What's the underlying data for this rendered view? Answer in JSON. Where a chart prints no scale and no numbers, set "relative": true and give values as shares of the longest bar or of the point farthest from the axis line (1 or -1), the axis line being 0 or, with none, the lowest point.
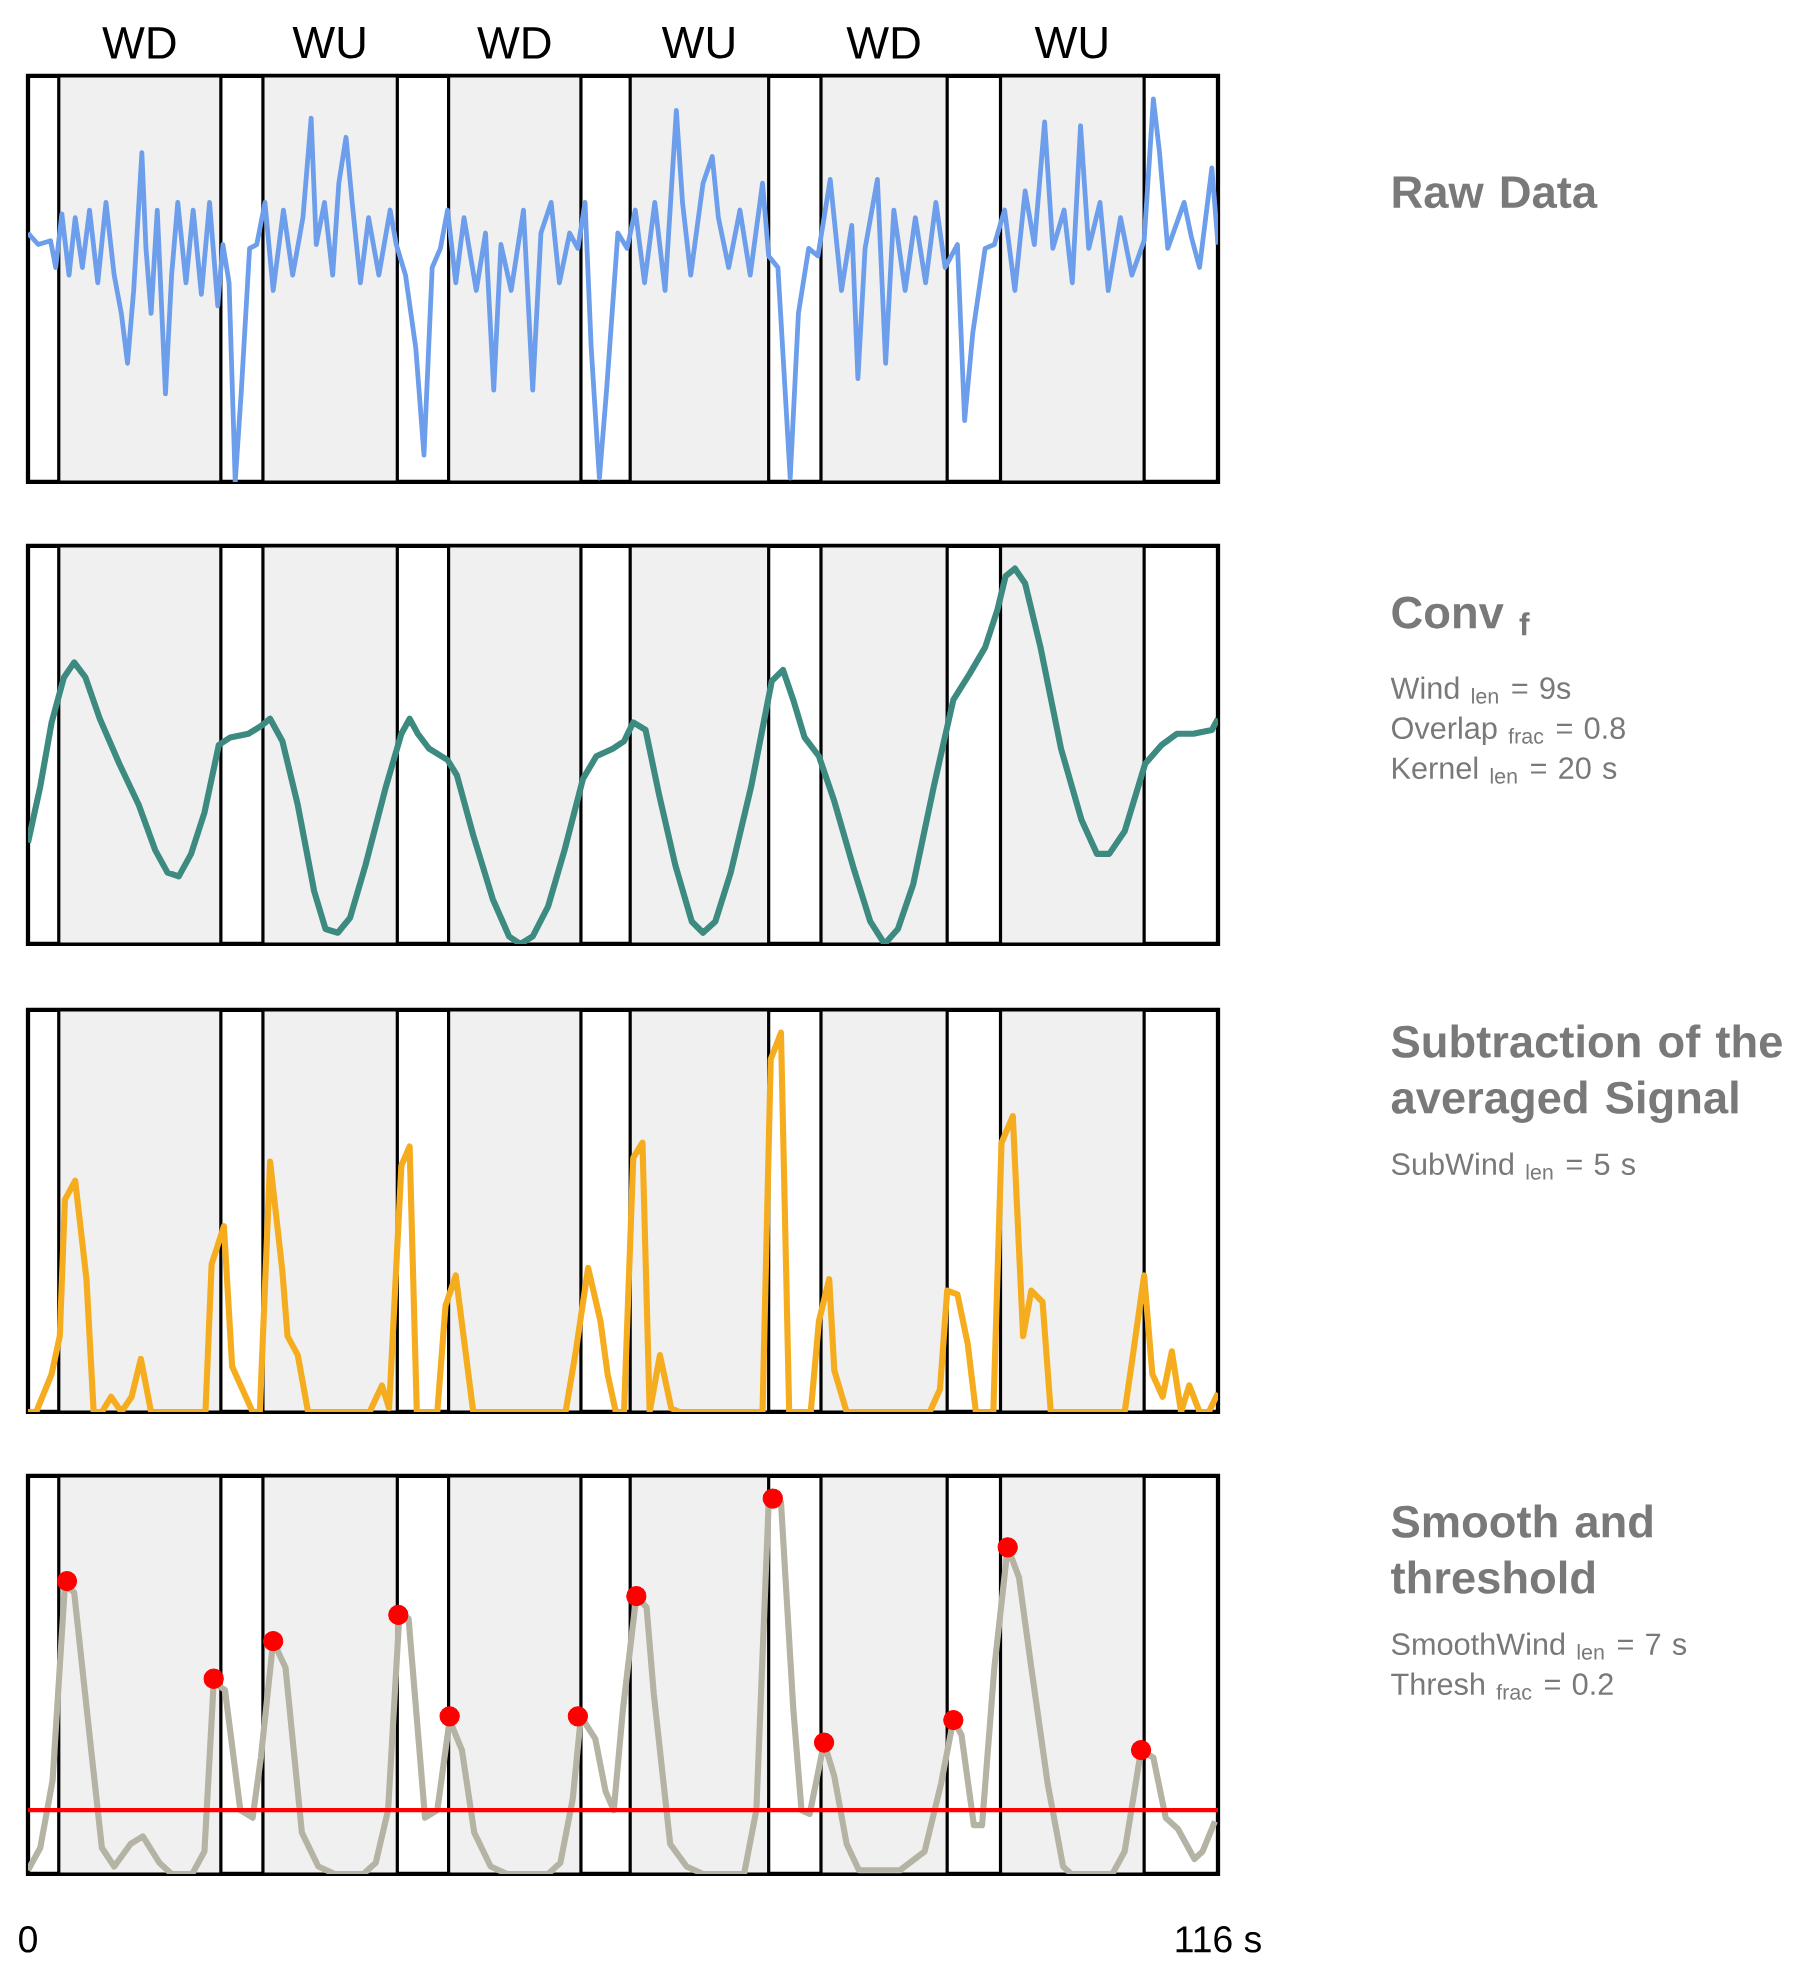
{
  "chart_data": [
    {
      "type": "line",
      "relative": true,
      "annotations": [
        "Raw Data"
      ],
      "xlim": [
        0,
        116
      ],
      "tick_labels": false,
      "bands": [
        {
          "axis": "x",
          "from": 3.0,
          "to": 18.8,
          "label": "WD",
          "color": "#f0f0f0"
        },
        {
          "axis": "x",
          "from": 22.9,
          "to": 36.0,
          "label": "WU",
          "color": "#f0f0f0"
        },
        {
          "axis": "x",
          "from": 41.0,
          "to": 53.9,
          "label": "WD",
          "color": "#f0f0f0"
        },
        {
          "axis": "x",
          "from": 58.7,
          "to": 72.2,
          "label": "WU",
          "color": "#f0f0f0"
        },
        {
          "axis": "x",
          "from": 77.3,
          "to": 89.6,
          "label": "WD",
          "color": "#f0f0f0"
        },
        {
          "axis": "x",
          "from": 94.8,
          "to": 108.8,
          "label": "WU",
          "color": "#f0f0f0"
        }
      ],
      "series": [
        {
          "color": "#6d9eeb",
          "x": [
            0,
            1.0,
            2.2,
            2.7,
            3.3,
            4.0,
            4.6,
            5.3,
            6.0,
            6.8,
            7.6,
            8.4,
            9.1,
            9.7,
            10.3,
            11.1,
            11.5,
            12.0,
            12.6,
            13.4,
            14.0,
            14.6,
            15.4,
            16.1,
            16.9,
            17.7,
            18.5,
            19.0,
            19.6,
            20.2,
            20.8,
            21.6,
            22.3,
            23.1,
            23.9,
            24.9,
            25.8,
            26.8,
            27.6,
            28.1,
            28.9,
            29.7,
            30.3,
            31.0,
            31.6,
            32.4,
            33.2,
            34.2,
            35.3,
            35.9,
            36.8,
            37.8,
            38.6,
            39.4,
            40.2,
            40.9,
            41.7,
            42.5,
            43.7,
            44.6,
            45.4,
            46.1,
            47.1,
            48.3,
            49.2,
            50.0,
            51.0,
            51.8,
            52.8,
            53.6,
            54.3,
            54.9,
            55.7,
            56.4,
            57.5,
            58.4,
            59.2,
            60.1,
            61.1,
            62.1,
            63.2,
            63.8,
            64.6,
            65.8,
            66.7,
            67.3,
            68.3,
            69.4,
            70.4,
            71.6,
            72.2,
            73.1,
            74.3,
            75.1,
            76.1,
            77.0,
            78.2,
            79.3,
            80.3,
            80.9,
            81.6,
            82.8,
            83.6,
            84.4,
            85.5,
            86.5,
            87.5,
            88.5,
            89.4,
            90.6,
            91.3,
            92.1,
            93.3,
            94.2,
            95.2,
            96.2,
            97.2,
            98.1,
            99.1,
            99.9,
            101.0,
            101.8,
            102.6,
            103.4,
            104.5,
            105.3,
            106.5,
            107.6,
            108.8,
            109.7,
            110.3,
            111.1,
            111.9,
            112.7,
            113.4,
            114.2,
            115.4,
            116.0
          ],
          "values": [
            0.65,
            0.62,
            0.63,
            0.56,
            0.7,
            0.54,
            0.69,
            0.56,
            0.71,
            0.52,
            0.73,
            0.54,
            0.44,
            0.31,
            0.5,
            0.86,
            0.61,
            0.44,
            0.71,
            0.23,
            0.54,
            0.73,
            0.52,
            0.71,
            0.49,
            0.73,
            0.46,
            0.62,
            0.52,
            0,
            0.24,
            0.61,
            0.62,
            0.73,
            0.5,
            0.71,
            0.54,
            0.69,
            0.95,
            0.62,
            0.73,
            0.54,
            0.78,
            0.9,
            0.73,
            0.52,
            0.69,
            0.54,
            0.71,
            0.62,
            0.54,
            0.35,
            0.07,
            0.56,
            0.61,
            0.71,
            0.52,
            0.69,
            0.5,
            0.65,
            0.24,
            0.62,
            0.5,
            0.71,
            0.24,
            0.65,
            0.73,
            0.52,
            0.65,
            0.61,
            0.73,
            0.35,
            0.01,
            0.24,
            0.65,
            0.61,
            0.71,
            0.52,
            0.73,
            0.5,
            0.97,
            0.73,
            0.54,
            0.78,
            0.85,
            0.69,
            0.56,
            0.71,
            0.54,
            0.78,
            0.59,
            0.56,
            0.01,
            0.44,
            0.61,
            0.59,
            0.79,
            0.5,
            0.67,
            0.27,
            0.61,
            0.79,
            0.31,
            0.71,
            0.5,
            0.69,
            0.52,
            0.73,
            0.56,
            0.62,
            0.16,
            0.39,
            0.61,
            0.62,
            0.71,
            0.5,
            0.76,
            0.62,
            0.94,
            0.61,
            0.71,
            0.52,
            0.93,
            0.61,
            0.73,
            0.5,
            0.69,
            0.54,
            0.63,
            1.0,
            0.86,
            0.61,
            0.67,
            0.73,
            0.64,
            0.56,
            0.82,
            0.62
          ]
        }
      ]
    },
    {
      "type": "line",
      "relative": true,
      "annotations": [
        "Conv $_{f}$",
        "Wind $_{len}$ = 9s",
        "Overlap $_{frac}$ = 0.8",
        "Kernel $_{len}$ = 20 s"
      ],
      "xlim": [
        0,
        116
      ],
      "tick_labels": false,
      "bands": [
        {
          "axis": "x",
          "from": 3.0,
          "to": 18.8,
          "color": "#f0f0f0"
        },
        {
          "axis": "x",
          "from": 22.9,
          "to": 36.0,
          "color": "#f0f0f0"
        },
        {
          "axis": "x",
          "from": 41.0,
          "to": 53.9,
          "color": "#f0f0f0"
        },
        {
          "axis": "x",
          "from": 58.7,
          "to": 72.2,
          "color": "#f0f0f0"
        },
        {
          "axis": "x",
          "from": 77.3,
          "to": 89.6,
          "color": "#f0f0f0"
        },
        {
          "axis": "x",
          "from": 94.8,
          "to": 108.8,
          "color": "#f0f0f0"
        }
      ],
      "series": [
        {
          "color": "#3d8b80",
          "x": [
            0,
            1.2,
            2.3,
            3.5,
            4.5,
            5.6,
            7.0,
            8.9,
            10.8,
            12.4,
            13.6,
            14.7,
            15.9,
            17.2,
            18.6,
            19.7,
            21.5,
            22.7,
            23.6,
            24.8,
            26.3,
            27.9,
            29.0,
            30.2,
            31.4,
            32.9,
            34.9,
            36.4,
            37.2,
            38.0,
            39.1,
            40.9,
            41.8,
            43.4,
            45.3,
            46.9,
            48.0,
            49.2,
            50.7,
            52.3,
            54.1,
            55.4,
            57.0,
            58.1,
            59.0,
            60.2,
            61.5,
            63.1,
            64.7,
            65.8,
            67.0,
            68.5,
            70.5,
            72.5,
            73.6,
            74.6,
            75.7,
            77.1,
            78.6,
            80.5,
            82.1,
            83.5,
            84.8,
            86.3,
            88.3,
            90.2,
            91.8,
            93.3,
            94.5,
            95.3,
            96.2,
            97.2,
            98.7,
            100.7,
            102.7,
            104.2,
            105.4,
            106.9,
            108.9,
            110.5,
            112.0,
            113.6,
            115.4,
            116.0
          ],
          "values": [
            0.27,
            0.42,
            0.59,
            0.71,
            0.75,
            0.71,
            0.6,
            0.48,
            0.37,
            0.25,
            0.19,
            0.18,
            0.24,
            0.35,
            0.53,
            0.55,
            0.56,
            0.58,
            0.6,
            0.54,
            0.37,
            0.14,
            0.04,
            0.03,
            0.07,
            0.21,
            0.42,
            0.56,
            0.6,
            0.56,
            0.52,
            0.49,
            0.45,
            0.29,
            0.12,
            0.02,
            0,
            0.02,
            0.1,
            0.25,
            0.44,
            0.5,
            0.52,
            0.54,
            0.59,
            0.57,
            0.4,
            0.21,
            0.06,
            0.03,
            0.06,
            0.19,
            0.42,
            0.7,
            0.73,
            0.65,
            0.55,
            0.5,
            0.38,
            0.2,
            0.06,
            0.0,
            0.04,
            0.16,
            0.42,
            0.65,
            0.72,
            0.79,
            0.89,
            0.98,
            1.0,
            0.96,
            0.79,
            0.52,
            0.33,
            0.24,
            0.24,
            0.3,
            0.48,
            0.53,
            0.56,
            0.56,
            0.57,
            0.6
          ]
        }
      ]
    },
    {
      "type": "line",
      "relative": true,
      "annotations": [
        "Subtraction of the averaged Signal",
        "SubWind $_{len}$ = 5 s"
      ],
      "xlim": [
        0,
        116
      ],
      "tick_labels": false,
      "bands": [
        {
          "axis": "x",
          "from": 3.0,
          "to": 18.8,
          "color": "#f0f0f0"
        },
        {
          "axis": "x",
          "from": 22.9,
          "to": 36.0,
          "color": "#f0f0f0"
        },
        {
          "axis": "x",
          "from": 41.0,
          "to": 53.9,
          "color": "#f0f0f0"
        },
        {
          "axis": "x",
          "from": 58.7,
          "to": 72.2,
          "color": "#f0f0f0"
        },
        {
          "axis": "x",
          "from": 77.3,
          "to": 89.6,
          "color": "#f0f0f0"
        },
        {
          "axis": "x",
          "from": 94.8,
          "to": 108.8,
          "color": "#f0f0f0"
        }
      ],
      "series": [
        {
          "color": "#f5ad1f",
          "x": [
            0,
            0.8,
            2.3,
            3.1,
            3.6,
            4.6,
            5.7,
            6.4,
            7.2,
            8.1,
            9.1,
            10.1,
            11.0,
            12.0,
            17.3,
            17.9,
            19.1,
            19.9,
            20.9,
            21.9,
            22.6,
            23.6,
            24.8,
            25.3,
            26.3,
            27.3,
            33.3,
            34.5,
            35.2,
            36.4,
            37.2,
            37.9,
            39.9,
            40.7,
            41.7,
            43.4,
            52.4,
            53.4,
            54.6,
            55.8,
            56.5,
            57.3,
            58.1,
            59.0,
            59.9,
            60.6,
            61.6,
            62.7,
            63.5,
            71.6,
            72.4,
            73.4,
            74.2,
            76.3,
            77.1,
            78.1,
            78.6,
            79.8,
            87.9,
            88.9,
            89.6,
            90.6,
            91.6,
            92.4,
            94.1,
            94.9,
            96.0,
            97.0,
            97.8,
            98.9,
            99.7,
            106.9,
            107.6,
            108.8,
            109.6,
            110.6,
            111.5,
            112.4,
            113.2,
            114.2,
            115.1,
            116.0
          ],
          "values": [
            0,
            0,
            0.1,
            0.2,
            0.56,
            0.61,
            0.35,
            0,
            0,
            0.04,
            0,
            0.04,
            0.14,
            0,
            0,
            0.39,
            0.49,
            0.12,
            0.06,
            0,
            0,
            0.66,
            0.37,
            0.2,
            0.15,
            0,
            0,
            0.07,
            0.01,
            0.65,
            0.7,
            0,
            0,
            0.28,
            0.36,
            0,
            0,
            0.16,
            0.38,
            0.24,
            0.1,
            0,
            0,
            0.67,
            0.71,
            0,
            0.15,
            0.01,
            0,
            0,
            0.93,
            1.0,
            0,
            0,
            0.24,
            0.35,
            0.11,
            0,
            0,
            0.06,
            0.32,
            0.31,
            0.18,
            0,
            0,
            0.71,
            0.78,
            0.2,
            0.32,
            0.29,
            0,
            0,
            0.13,
            0.36,
            0.1,
            0.04,
            0.16,
            0,
            0.07,
            0,
            0,
            0.05
          ]
        }
      ]
    },
    {
      "type": "line",
      "relative": true,
      "annotations": [
        "Smooth and threshold",
        "SmoothWind $_{len}$ = 7 s",
        "Thresh $_{frac}$ = 0.2"
      ],
      "xlim": [
        0,
        116
      ],
      "xticks": [
        0,
        {
          "value": 116,
          "label": "116 s"
        }
      ],
      "tick_labels": "x",
      "ref_lines": [
        {
          "axis": "y",
          "value": 0.17,
          "color": "#ff0000"
        }
      ],
      "bands": [
        {
          "axis": "x",
          "from": 3.0,
          "to": 18.8,
          "color": "#f0f0f0"
        },
        {
          "axis": "x",
          "from": 22.9,
          "to": 36.0,
          "color": "#f0f0f0"
        },
        {
          "axis": "x",
          "from": 41.0,
          "to": 53.9,
          "color": "#f0f0f0"
        },
        {
          "axis": "x",
          "from": 58.7,
          "to": 72.2,
          "color": "#f0f0f0"
        },
        {
          "axis": "x",
          "from": 77.3,
          "to": 89.6,
          "color": "#f0f0f0"
        },
        {
          "axis": "x",
          "from": 94.8,
          "to": 108.8,
          "color": "#f0f0f0"
        }
      ],
      "series": [
        {
          "color": "#b5b3a3",
          "x": [
            0.0,
            1.2,
            2.4,
            3.6,
            4.5,
            6.0,
            7.2,
            8.4,
            10.0,
            11.2,
            12.8,
            14.0,
            16.0,
            17.2,
            18.1,
            19.2,
            20.7,
            21.9,
            22.7,
            23.9,
            25.1,
            26.7,
            28.3,
            29.9,
            32.7,
            33.9,
            35.1,
            36.2,
            37.1,
            38.7,
            39.9,
            41.1,
            42.3,
            43.5,
            45.1,
            46.7,
            50.7,
            51.9,
            53.1,
            53.9,
            55.3,
            56.3,
            57.1,
            58.0,
            59.3,
            60.3,
            61.0,
            62.6,
            64.2,
            65.8,
            69.8,
            71.0,
            72.2,
            73.4,
            74.6,
            75.4,
            76.2,
            77.6,
            78.6,
            79.8,
            81.0,
            85.0,
            87.4,
            89.0,
            90.2,
            91.0,
            92.2,
            93.0,
            94.2,
            95.5,
            96.6,
            97.8,
            99.4,
            100.9,
            101.7,
            105.7,
            106.9,
            108.5,
            109.7,
            110.9,
            112.1,
            113.7,
            114.5,
            115.7
          ],
          "values": [
            0.01,
            0.07,
            0.25,
            0.77,
            0.75,
            0.37,
            0.07,
            0.02,
            0.08,
            0.1,
            0.03,
            0,
            0,
            0.06,
            0.51,
            0.49,
            0.17,
            0.15,
            0.31,
            0.62,
            0.55,
            0.11,
            0.02,
            0,
            0,
            0.03,
            0.17,
            0.69,
            0.68,
            0.15,
            0.17,
            0.41,
            0.33,
            0.11,
            0.02,
            0,
            0,
            0.03,
            0.2,
            0.42,
            0.36,
            0.22,
            0.17,
            0.44,
            0.74,
            0.71,
            0.48,
            0.08,
            0.02,
            0,
            0,
            0.17,
            0.99,
            0.99,
            0.44,
            0.17,
            0.16,
            0.35,
            0.26,
            0.08,
            0.01,
            0.01,
            0.06,
            0.24,
            0.41,
            0.37,
            0.13,
            0.13,
            0.55,
            0.87,
            0.79,
            0.55,
            0.24,
            0.02,
            0,
            0,
            0.06,
            0.33,
            0.31,
            0.15,
            0.12,
            0.04,
            0.06,
            0.14
          ]
        },
        {
          "type": "scatter",
          "marker": "circle",
          "color": "#ff0000",
          "x": [
            3.8,
            18.1,
            23.9,
            36.1,
            41.1,
            53.6,
            59.3,
            72.6,
            77.6,
            90.2,
            95.5,
            108.5
          ],
          "values": [
            0.78,
            0.52,
            0.62,
            0.69,
            0.42,
            0.42,
            0.74,
            1,
            0.35,
            0.41,
            0.87,
            0.33
          ]
        }
      ]
    }
  ]
}
